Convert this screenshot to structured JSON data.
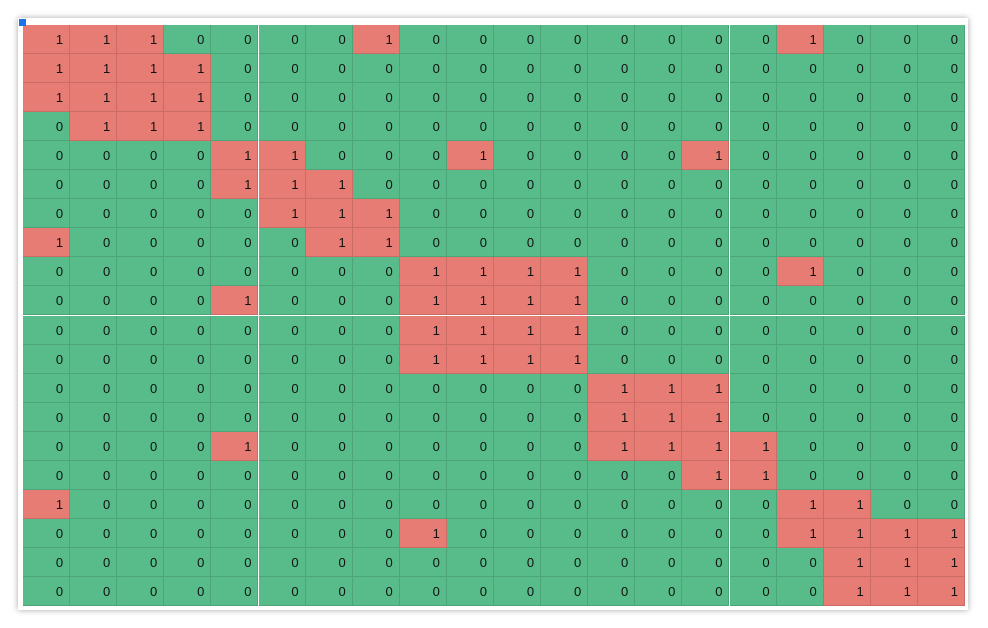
{
  "cell_colors": [
    "#57bb8a",
    "#e67c73"
  ],
  "grid": {
    "rows": [
      [
        1,
        1,
        1,
        0,
        0,
        0,
        0,
        1,
        0,
        0,
        0,
        0,
        0,
        0,
        0,
        0,
        1,
        0,
        0,
        0
      ],
      [
        1,
        1,
        1,
        1,
        0,
        0,
        0,
        0,
        0,
        0,
        0,
        0,
        0,
        0,
        0,
        0,
        0,
        0,
        0,
        0
      ],
      [
        1,
        1,
        1,
        1,
        0,
        0,
        0,
        0,
        0,
        0,
        0,
        0,
        0,
        0,
        0,
        0,
        0,
        0,
        0,
        0
      ],
      [
        0,
        1,
        1,
        1,
        0,
        0,
        0,
        0,
        0,
        0,
        0,
        0,
        0,
        0,
        0,
        0,
        0,
        0,
        0,
        0
      ],
      [
        0,
        0,
        0,
        0,
        1,
        1,
        0,
        0,
        0,
        1,
        0,
        0,
        0,
        0,
        1,
        0,
        0,
        0,
        0,
        0
      ],
      [
        0,
        0,
        0,
        0,
        1,
        1,
        1,
        0,
        0,
        0,
        0,
        0,
        0,
        0,
        0,
        0,
        0,
        0,
        0,
        0
      ],
      [
        0,
        0,
        0,
        0,
        0,
        1,
        1,
        1,
        0,
        0,
        0,
        0,
        0,
        0,
        0,
        0,
        0,
        0,
        0,
        0
      ],
      [
        1,
        0,
        0,
        0,
        0,
        0,
        1,
        1,
        0,
        0,
        0,
        0,
        0,
        0,
        0,
        0,
        0,
        0,
        0,
        0
      ],
      [
        0,
        0,
        0,
        0,
        0,
        0,
        0,
        0,
        1,
        1,
        1,
        1,
        0,
        0,
        0,
        0,
        1,
        0,
        0,
        0
      ],
      [
        0,
        0,
        0,
        0,
        1,
        0,
        0,
        0,
        1,
        1,
        1,
        1,
        0,
        0,
        0,
        0,
        0,
        0,
        0,
        0
      ],
      [
        0,
        0,
        0,
        0,
        0,
        0,
        0,
        0,
        1,
        1,
        1,
        1,
        0,
        0,
        0,
        0,
        0,
        0,
        0,
        0
      ],
      [
        0,
        0,
        0,
        0,
        0,
        0,
        0,
        0,
        1,
        1,
        1,
        1,
        0,
        0,
        0,
        0,
        0,
        0,
        0,
        0
      ],
      [
        0,
        0,
        0,
        0,
        0,
        0,
        0,
        0,
        0,
        0,
        0,
        0,
        1,
        1,
        1,
        0,
        0,
        0,
        0,
        0
      ],
      [
        0,
        0,
        0,
        0,
        0,
        0,
        0,
        0,
        0,
        0,
        0,
        0,
        1,
        1,
        1,
        0,
        0,
        0,
        0,
        0
      ],
      [
        0,
        0,
        0,
        0,
        1,
        0,
        0,
        0,
        0,
        0,
        0,
        0,
        1,
        1,
        1,
        1,
        0,
        0,
        0,
        0
      ],
      [
        0,
        0,
        0,
        0,
        0,
        0,
        0,
        0,
        0,
        0,
        0,
        0,
        0,
        0,
        1,
        1,
        0,
        0,
        0,
        0
      ],
      [
        1,
        0,
        0,
        0,
        0,
        0,
        0,
        0,
        0,
        0,
        0,
        0,
        0,
        0,
        0,
        0,
        1,
        1,
        0,
        0
      ],
      [
        0,
        0,
        0,
        0,
        0,
        0,
        0,
        0,
        1,
        0,
        0,
        0,
        0,
        0,
        0,
        0,
        1,
        1,
        1,
        1
      ],
      [
        0,
        0,
        0,
        0,
        0,
        0,
        0,
        0,
        0,
        0,
        0,
        0,
        0,
        0,
        0,
        0,
        0,
        1,
        1,
        1
      ],
      [
        0,
        0,
        0,
        0,
        0,
        0,
        0,
        0,
        0,
        0,
        0,
        0,
        0,
        0,
        0,
        0,
        0,
        1,
        1,
        1
      ]
    ]
  }
}
